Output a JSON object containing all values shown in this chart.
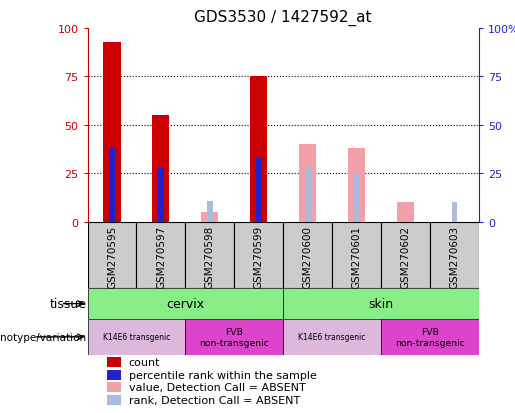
{
  "title": "GDS3530 / 1427592_at",
  "samples": [
    "GSM270595",
    "GSM270597",
    "GSM270598",
    "GSM270599",
    "GSM270600",
    "GSM270601",
    "GSM270602",
    "GSM270603"
  ],
  "count_values": [
    93,
    55,
    null,
    75,
    null,
    null,
    null,
    null
  ],
  "percentile_values": [
    38,
    28,
    null,
    33,
    null,
    null,
    null,
    null
  ],
  "absent_value_values": [
    null,
    null,
    5,
    null,
    40,
    38,
    10,
    null
  ],
  "absent_rank_values": [
    null,
    null,
    11,
    null,
    28,
    25,
    null,
    10
  ],
  "ylim": [
    0,
    100
  ],
  "count_color": "#CC0000",
  "percentile_color": "#2222CC",
  "absent_value_color": "#F4A0A8",
  "absent_rank_color": "#AABBDD",
  "tissue_green_color": "#88EE88",
  "genotype_k14_color": "#DDB8DD",
  "genotype_fvb_color": "#DD44CC",
  "axis_color_left": "#CC0000",
  "axis_color_right": "#2222CC",
  "xlabel_bg_color": "#CCCCCC",
  "legend_items": [
    {
      "label": "count",
      "color": "#CC0000"
    },
    {
      "label": "percentile rank within the sample",
      "color": "#2222CC"
    },
    {
      "label": "value, Detection Call = ABSENT",
      "color": "#F4A0A8"
    },
    {
      "label": "rank, Detection Call = ABSENT",
      "color": "#AABBDD"
    }
  ]
}
